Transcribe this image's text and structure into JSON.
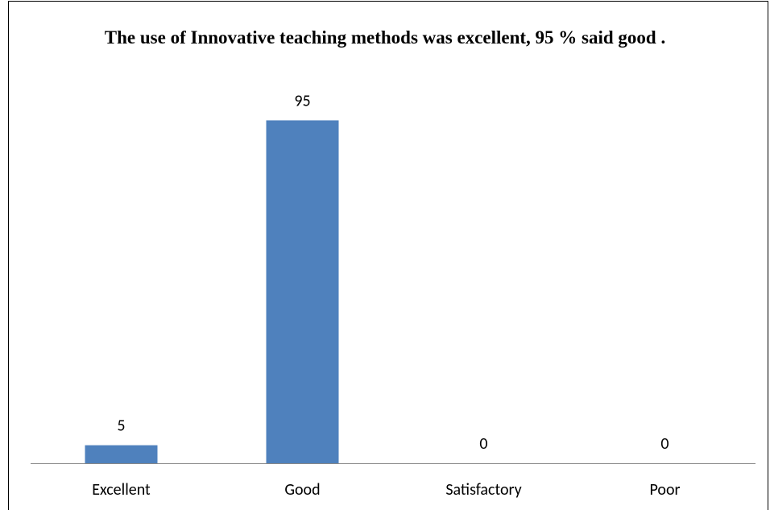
{
  "chart_data": {
    "type": "bar",
    "title": "The use of Innovative teaching methods  was excellent, 95 % said good .",
    "categories": [
      "Excellent",
      "Good",
      "Satisfactory",
      "Poor"
    ],
    "values": [
      5,
      95,
      0,
      0
    ],
    "color": "#4f81bd",
    "ylim": [
      0,
      100
    ]
  }
}
